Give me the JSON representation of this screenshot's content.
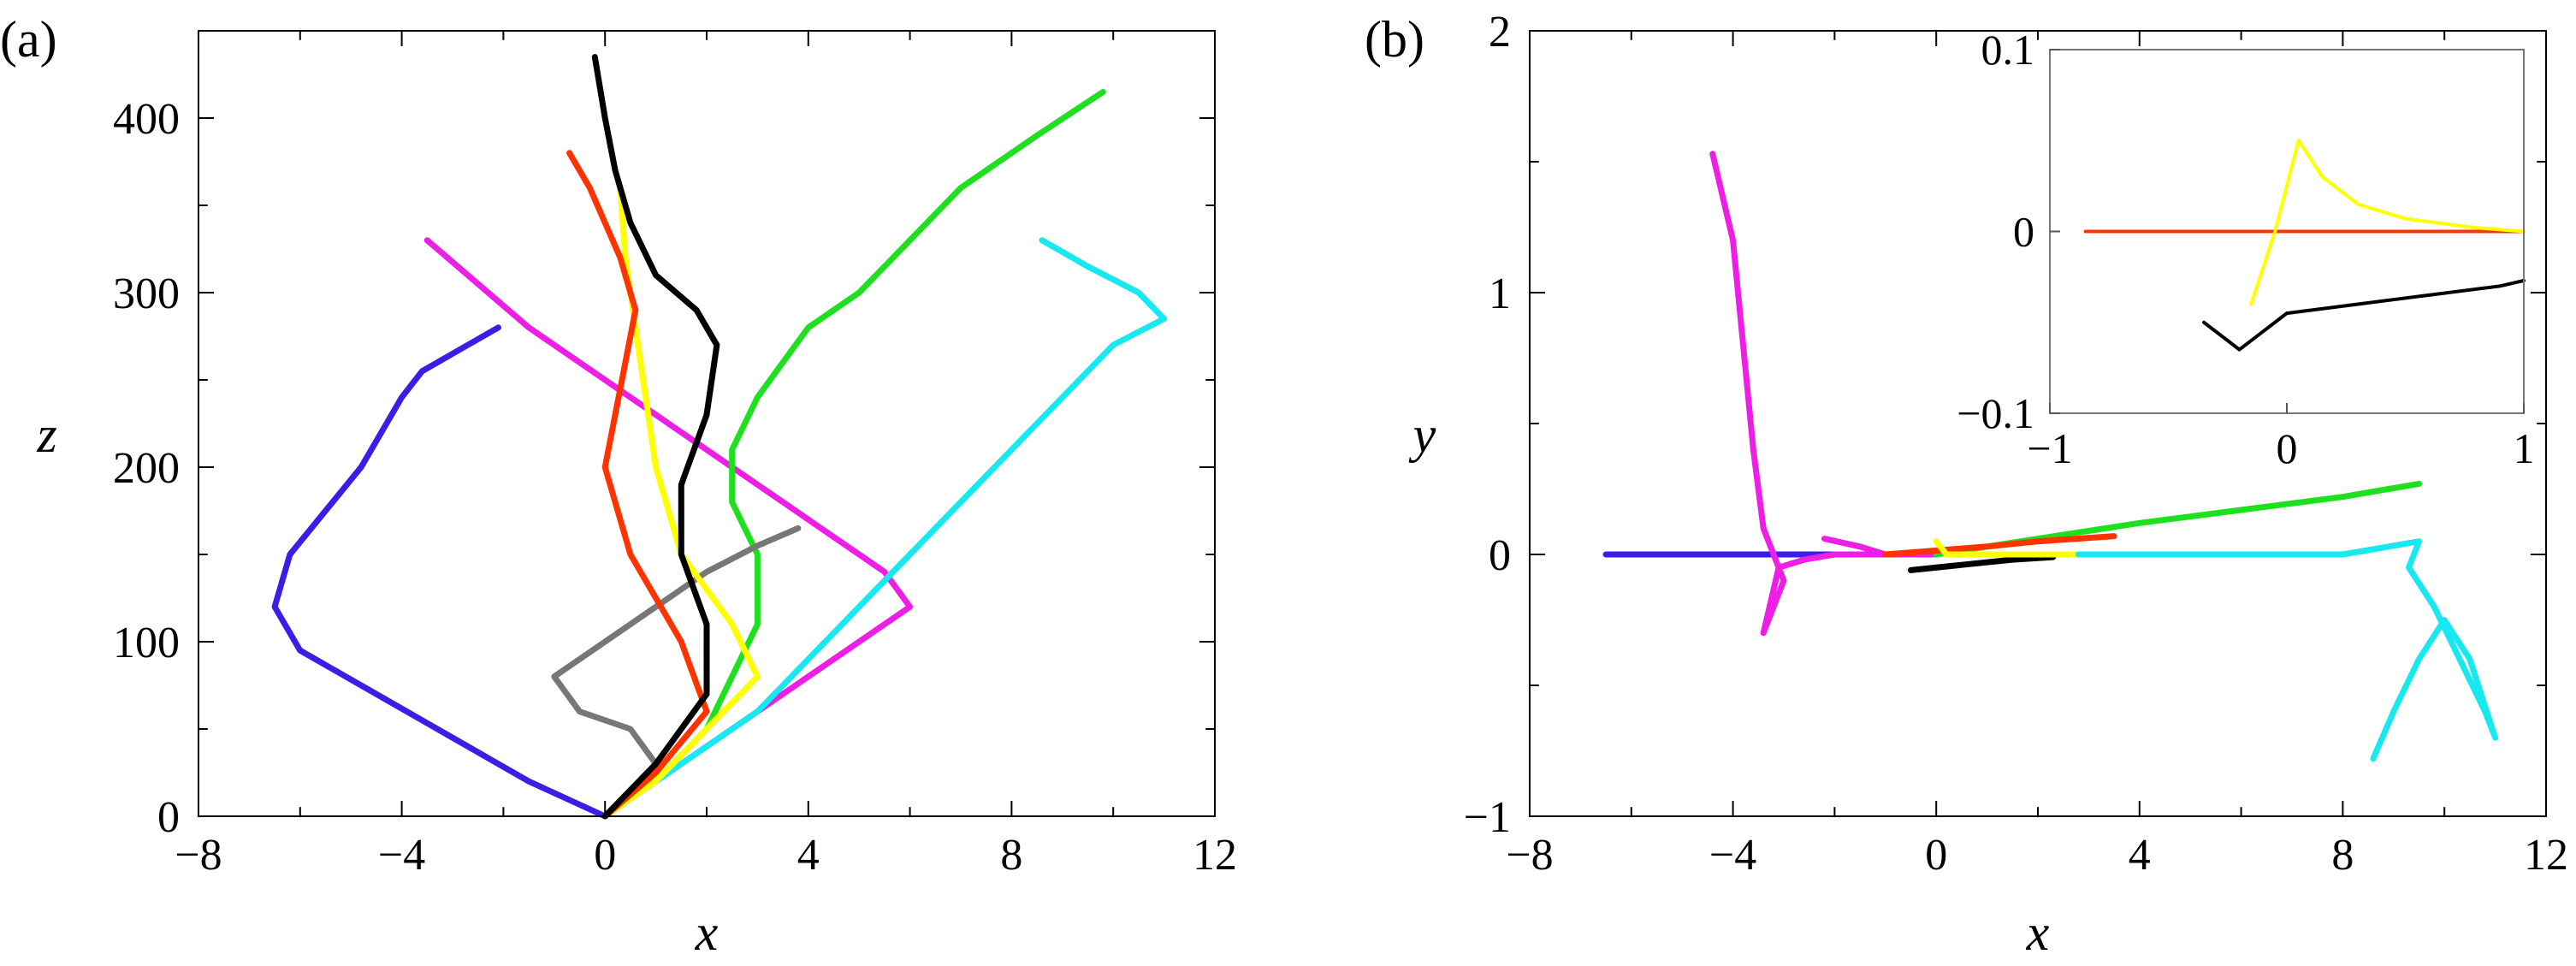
{
  "chart_data": [
    {
      "panel_label": "(a)",
      "type": "line",
      "xlabel": "x",
      "ylabel": "z",
      "xlim": [
        -8,
        12
      ],
      "ylim": [
        0,
        450
      ],
      "xticks": [
        -8,
        -4,
        0,
        4,
        8,
        12
      ],
      "yticks": [
        0,
        100,
        200,
        300,
        400
      ],
      "xtick_labels": [
        "−8",
        "−4",
        "0",
        "4",
        "8",
        "12"
      ],
      "ytick_labels": [
        "0",
        "100",
        "200",
        "300",
        "400"
      ],
      "grid": false,
      "series": [
        {
          "color": "#3a1ee6",
          "x": [
            0,
            -1.5,
            -3.0,
            -4.5,
            -6.0,
            -6.5,
            -6.2,
            -5.5,
            -4.8,
            -4.3,
            -4.0,
            -3.6,
            -3.0,
            -2.4,
            -2.1
          ],
          "z": [
            0,
            20,
            45,
            70,
            95,
            120,
            150,
            175,
            200,
            225,
            240,
            255,
            265,
            275,
            280
          ]
        },
        {
          "color": "#ee1ee6",
          "x": [
            0,
            1.0,
            2.0,
            3.0,
            4.0,
            5.0,
            6.0,
            5.5,
            4.5,
            3.5,
            2.5,
            1.5,
            0.5,
            -0.5,
            -1.5,
            -2.5,
            -3.5
          ],
          "z": [
            0,
            20,
            40,
            60,
            80,
            100,
            120,
            140,
            160,
            180,
            200,
            220,
            240,
            260,
            280,
            305,
            330
          ]
        },
        {
          "color": "#1ee01e",
          "x": [
            0,
            1.0,
            2.0,
            2.5,
            3.0,
            3.0,
            2.5,
            2.5,
            3.0,
            3.5,
            4.0,
            5.0,
            6.0,
            7.0,
            8.5,
            9.8
          ],
          "z": [
            0,
            20,
            50,
            80,
            110,
            150,
            180,
            210,
            240,
            260,
            280,
            300,
            330,
            360,
            390,
            415
          ]
        },
        {
          "color": "#18e8f0",
          "x": [
            0,
            1.0,
            2.0,
            3.0,
            4.0,
            5.0,
            6.0,
            7.0,
            8.0,
            9.0,
            10.0,
            11.0,
            10.5,
            9.5,
            8.6
          ],
          "z": [
            0,
            20,
            40,
            60,
            90,
            120,
            150,
            180,
            210,
            240,
            270,
            285,
            300,
            315,
            330
          ]
        },
        {
          "color": "#777777",
          "x": [
            0,
            0.5,
            1.0,
            0.5,
            -0.5,
            -1.0,
            0.0,
            1.0,
            2.0,
            3.0,
            3.8
          ],
          "z": [
            0,
            15,
            30,
            50,
            60,
            80,
            100,
            120,
            140,
            155,
            165
          ]
        },
        {
          "color": "#ffff00",
          "x": [
            0,
            1.0,
            2.0,
            3.0,
            2.5,
            1.5,
            1.0,
            0.8,
            0.6,
            0.4,
            0.3
          ],
          "z": [
            0,
            20,
            50,
            80,
            110,
            150,
            200,
            240,
            280,
            320,
            360
          ]
        },
        {
          "color": "#ff3300",
          "x": [
            0,
            1.0,
            2.0,
            1.5,
            0.5,
            0.0,
            0.2,
            0.4,
            0.6,
            0.3,
            0.0,
            -0.3,
            -0.7
          ],
          "z": [
            0,
            25,
            60,
            100,
            150,
            200,
            230,
            260,
            290,
            320,
            340,
            360,
            380
          ]
        },
        {
          "color": "#000000",
          "x": [
            0,
            1.0,
            2.0,
            2.0,
            1.5,
            1.5,
            2.0,
            2.2,
            1.8,
            1.0,
            0.5,
            0.2,
            0.0,
            -0.2
          ],
          "z": [
            0,
            30,
            70,
            110,
            150,
            190,
            230,
            270,
            290,
            310,
            340,
            370,
            400,
            435
          ]
        }
      ]
    },
    {
      "panel_label": "(b)",
      "type": "line",
      "xlabel": "x",
      "ylabel": "y",
      "xlim": [
        -8,
        12
      ],
      "ylim": [
        -1,
        2
      ],
      "xticks": [
        -8,
        -4,
        0,
        4,
        8,
        12
      ],
      "yticks": [
        -1,
        0,
        1,
        2
      ],
      "xtick_labels": [
        "−8",
        "−4",
        "0",
        "4",
        "8",
        "12"
      ],
      "ytick_labels": [
        "−1",
        "0",
        "1",
        "2"
      ],
      "grid": false,
      "series": [
        {
          "color": "#3a1ee6",
          "x": [
            -6.5,
            -4.0,
            -2.0,
            0.0
          ],
          "y": [
            0.0,
            0.0,
            0.0,
            0.0
          ]
        },
        {
          "color": "#ee1ee6",
          "x": [
            -2.2,
            -1.5,
            -1.0,
            0.0,
            -2.0,
            -2.6,
            -3.1,
            -3.4,
            -3.0,
            -3.4,
            -3.6,
            -3.8,
            -4.0,
            -4.4
          ],
          "y": [
            0.06,
            0.03,
            0.0,
            0.0,
            0.0,
            -0.02,
            -0.05,
            -0.3,
            -0.1,
            0.1,
            0.4,
            0.8,
            1.2,
            1.53
          ]
        },
        {
          "color": "#1ee01e",
          "x": [
            0,
            2.0,
            4.0,
            6.0,
            8.0,
            9.5
          ],
          "y": [
            0.0,
            0.06,
            0.12,
            0.17,
            0.22,
            0.27
          ]
        },
        {
          "color": "#ff3300",
          "x": [
            -1.0,
            1.0,
            2.0,
            3.5
          ],
          "y": [
            0.0,
            0.03,
            0.05,
            0.07
          ]
        },
        {
          "color": "#000000",
          "x": [
            -0.5,
            0.5,
            1.5,
            2.3
          ],
          "y": [
            -0.06,
            -0.04,
            -0.02,
            -0.01
          ]
        },
        {
          "color": "#ffff00",
          "x": [
            0.0,
            0.2,
            2.3,
            2.8
          ],
          "y": [
            0.05,
            0.0,
            0.0,
            0.0
          ]
        },
        {
          "color": "#18e8f0",
          "x": [
            2.8,
            5.0,
            8.0,
            9.5,
            9.3,
            9.8,
            10.3,
            10.8,
            11.0,
            10.5,
            10.0,
            9.5,
            9.0,
            8.6
          ],
          "y": [
            0.0,
            0.0,
            0.0,
            0.05,
            -0.05,
            -0.2,
            -0.4,
            -0.6,
            -0.7,
            -0.4,
            -0.25,
            -0.4,
            -0.6,
            -0.78
          ]
        }
      ],
      "inset": {
        "xlim": [
          -1,
          1
        ],
        "ylim": [
          -0.1,
          0.1
        ],
        "xticks": [
          -1,
          0,
          1
        ],
        "yticks": [
          -0.1,
          0,
          0.1
        ],
        "xtick_labels": [
          "−1",
          "0",
          "1"
        ],
        "ytick_labels": [
          "−0.1",
          "0",
          "0.1"
        ],
        "series": [
          {
            "color": "#ff3300",
            "x": [
              -0.85,
              1.0
            ],
            "y": [
              0.0,
              0.0
            ]
          },
          {
            "color": "#ffff00",
            "x": [
              -0.15,
              -0.05,
              0.05,
              0.15,
              0.3,
              0.5,
              0.8,
              1.0
            ],
            "y": [
              -0.04,
              0.0,
              0.05,
              0.03,
              0.015,
              0.007,
              0.002,
              0.0
            ]
          },
          {
            "color": "#000000",
            "x": [
              -0.35,
              -0.2,
              0.0,
              0.3,
              0.6,
              0.9,
              1.0
            ],
            "y": [
              -0.05,
              -0.065,
              -0.045,
              -0.04,
              -0.035,
              -0.03,
              -0.027
            ]
          }
        ]
      }
    }
  ]
}
